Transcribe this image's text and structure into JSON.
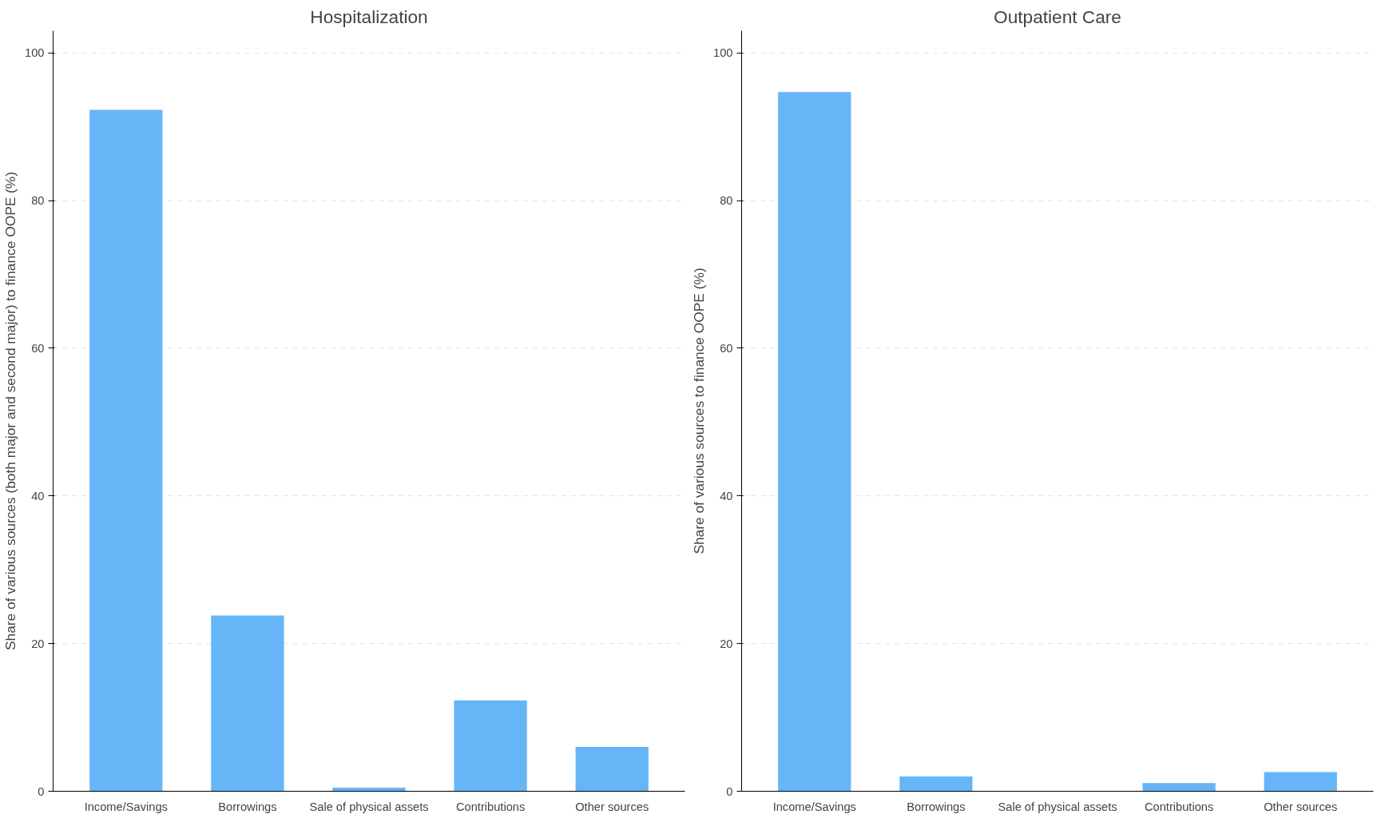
{
  "chart_data": [
    {
      "type": "bar",
      "title": "Hospitalization",
      "ylabel": "Share of various sources (both major and second major) to finance OOPE (%)",
      "categories": [
        "Income/Savings",
        "Borrowings",
        "Sale of physical assets",
        "Contributions",
        "Other sources"
      ],
      "series": [
        {
          "color": "#66b5f7",
          "values": [
            92.3,
            23.8,
            0.5,
            12.3,
            6.0
          ]
        }
      ],
      "ylim": [
        0,
        103
      ],
      "yticks": [
        0,
        20,
        40,
        60,
        80,
        100
      ],
      "grid": "y"
    },
    {
      "type": "bar",
      "title": "Outpatient Care",
      "ylabel": "Share of various sources to finance OOPE (%)",
      "categories": [
        "Income/Savings",
        "Borrowings",
        "Sale of physical assets",
        "Contributions",
        "Other sources"
      ],
      "series": [
        {
          "color": "#66b5f7",
          "values": [
            94.7,
            2.0,
            0,
            1.1,
            2.6
          ]
        }
      ],
      "ylim": [
        0,
        103
      ],
      "yticks": [
        0,
        20,
        40,
        60,
        80,
        100
      ],
      "grid": "y"
    }
  ]
}
